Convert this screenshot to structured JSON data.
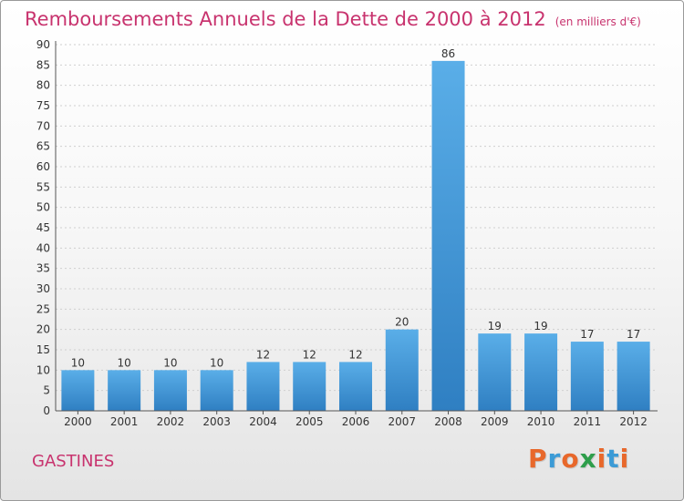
{
  "header": {
    "title": "Remboursements Annuels de la Dette de 2000 à 2012",
    "unit": "(en milliers d'€)"
  },
  "footer": {
    "place": "GASTINES",
    "logo": "Proxiti",
    "logo_colors": [
      "#e8682b",
      "#3c9bd6",
      "#e8682b",
      "#2e9e4b",
      "#e8682b",
      "#3c9bd6",
      "#e8682b"
    ]
  },
  "colors": {
    "bar_top": "#5aaee8",
    "bar_bottom": "#2f7fc2",
    "title": "#c8336e"
  },
  "chart_data": {
    "type": "bar",
    "categories": [
      "2000",
      "2001",
      "2002",
      "2003",
      "2004",
      "2005",
      "2006",
      "2007",
      "2008",
      "2009",
      "2010",
      "2011",
      "2012"
    ],
    "values": [
      10,
      10,
      10,
      10,
      12,
      12,
      12,
      20,
      86,
      19,
      19,
      17,
      17
    ],
    "data_labels": [
      "10",
      "10",
      "10",
      "10",
      "12",
      "12",
      "12",
      "20",
      "86",
      "19",
      "19",
      "17",
      "17"
    ],
    "ylim": [
      0,
      90
    ],
    "yticks": [
      0,
      5,
      10,
      15,
      20,
      25,
      30,
      35,
      40,
      45,
      50,
      55,
      60,
      65,
      70,
      75,
      80,
      85,
      90
    ],
    "grid": true
  }
}
